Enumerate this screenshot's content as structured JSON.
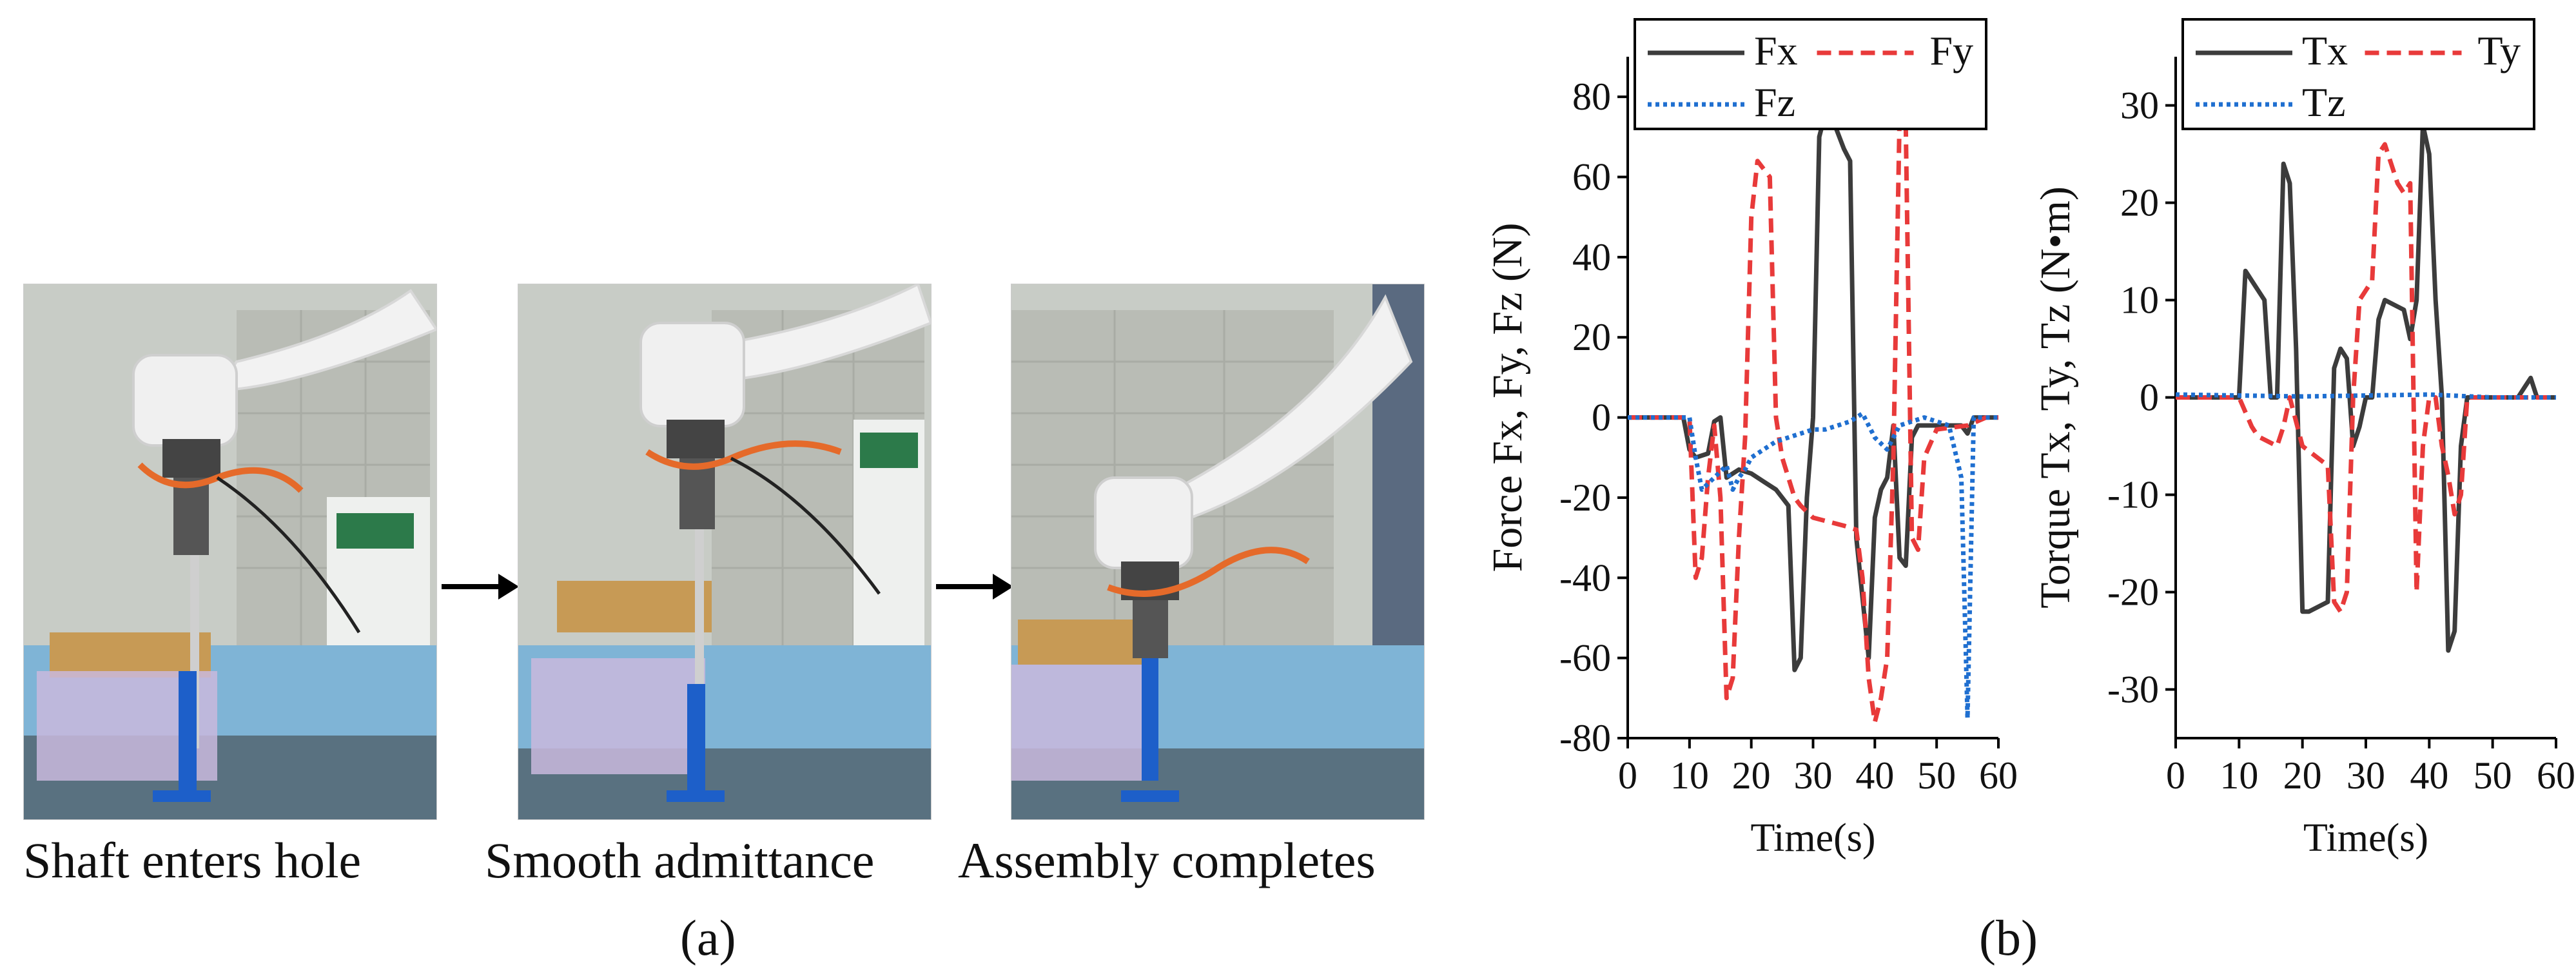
{
  "panel_a": {
    "label": "(a)",
    "captions": [
      "Shaft enters hole",
      "Smooth admittance",
      "Assembly completes"
    ]
  },
  "panel_b": {
    "label": "(b)"
  },
  "chart_data": [
    {
      "type": "line",
      "title": "",
      "xlabel": "Time(s)",
      "ylabel": "Force Fx, Fy, Fz (N)",
      "xlim": [
        0,
        60
      ],
      "ylim": [
        -80,
        90
      ],
      "xticks": [
        0,
        10,
        20,
        30,
        40,
        50,
        60
      ],
      "yticks": [
        -80,
        -60,
        -40,
        -20,
        0,
        20,
        40,
        60,
        80
      ],
      "legend": "top",
      "series": [
        {
          "name": "Fx",
          "color": "#3c3c3c",
          "dash": "solid",
          "x": [
            0,
            9,
            10,
            11,
            13,
            14,
            15,
            16,
            17,
            18,
            20,
            22,
            24,
            25,
            26,
            27,
            28,
            29,
            30,
            31,
            32,
            33,
            35,
            36,
            37,
            38,
            39,
            40,
            41,
            42,
            43,
            44,
            45,
            46,
            47,
            50,
            54,
            55,
            56,
            57,
            60
          ],
          "y": [
            0,
            0,
            -8,
            -10,
            -9,
            -1,
            0,
            -15,
            -14,
            -13,
            -14,
            -16,
            -18,
            -20,
            -22,
            -63,
            -60,
            -20,
            0,
            70,
            76,
            75,
            67,
            64,
            -30,
            -45,
            -60,
            -25,
            -18,
            -15,
            -2,
            -35,
            -37,
            -5,
            -2,
            -2,
            -2,
            -4,
            0,
            0,
            0
          ]
        },
        {
          "name": "Fy",
          "color": "#e83a3a",
          "dash": "long",
          "x": [
            0,
            10,
            11,
            12,
            13,
            14,
            15,
            16,
            17,
            18,
            19,
            20,
            21,
            22,
            23,
            24,
            25,
            26,
            27,
            28,
            30,
            35,
            37,
            38,
            39,
            40,
            41,
            42,
            43,
            44,
            45,
            46,
            47,
            48,
            50,
            55,
            58,
            60
          ],
          "y": [
            0,
            0,
            -40,
            -35,
            -15,
            -2,
            -20,
            -70,
            -65,
            -30,
            -5,
            50,
            64,
            62,
            60,
            0,
            -10,
            -15,
            -20,
            -22,
            -25,
            -27,
            -28,
            -40,
            -65,
            -76,
            -70,
            -60,
            -10,
            75,
            73,
            -30,
            -33,
            -10,
            -3,
            -2,
            0,
            0
          ]
        },
        {
          "name": "Fz",
          "color": "#1f6fd0",
          "dash": "dot",
          "x": [
            0,
            10,
            11,
            12,
            14,
            16,
            17,
            18,
            19,
            20,
            22,
            24,
            26,
            28,
            30,
            32,
            34,
            36,
            38,
            40,
            42,
            44,
            46,
            48,
            50,
            52,
            54,
            55,
            56,
            57,
            60
          ],
          "y": [
            0,
            0,
            -10,
            -18,
            -15,
            -12,
            -18,
            -15,
            -13,
            -10,
            -8,
            -6,
            -5,
            -4,
            -3,
            -3,
            -2,
            -1,
            1,
            -5,
            -8,
            -2,
            -1,
            0,
            -1,
            -2,
            -15,
            -75,
            0,
            0,
            0
          ]
        }
      ]
    },
    {
      "type": "line",
      "title": "",
      "xlabel": "Time(s)",
      "ylabel": "Torque Tx, Ty, Tz (N•m)",
      "xlim": [
        0,
        60
      ],
      "ylim": [
        -35,
        35
      ],
      "xticks": [
        0,
        10,
        20,
        30,
        40,
        50,
        60
      ],
      "yticks": [
        -30,
        -20,
        -10,
        0,
        10,
        20,
        30
      ],
      "legend": "top",
      "series": [
        {
          "name": "Tx",
          "color": "#3c3c3c",
          "dash": "solid",
          "x": [
            0,
            10,
            11,
            12,
            14,
            15,
            16,
            17,
            18,
            19,
            20,
            21,
            24,
            25,
            26,
            27,
            28,
            29,
            30,
            31,
            32,
            33,
            36,
            37,
            38,
            39,
            40,
            41,
            42,
            43,
            44,
            45,
            46,
            47,
            54,
            55,
            56,
            57,
            60
          ],
          "y": [
            0,
            0,
            13,
            12,
            10,
            0,
            0,
            24,
            22,
            5,
            -22,
            -22,
            -21,
            3,
            5,
            4,
            -5,
            -3,
            0,
            0,
            8,
            10,
            9,
            6,
            10,
            28,
            25,
            10,
            0,
            -26,
            -24,
            -5,
            0,
            0,
            0,
            1,
            2,
            0,
            0
          ]
        },
        {
          "name": "Ty",
          "color": "#e83a3a",
          "dash": "long",
          "x": [
            0,
            10,
            12,
            13,
            16,
            17,
            18,
            20,
            22,
            24,
            25,
            26,
            27,
            28,
            29,
            31,
            32,
            33,
            34,
            35,
            36,
            37,
            38,
            39,
            40,
            41,
            42,
            43,
            44,
            45,
            46,
            48,
            55,
            60
          ],
          "y": [
            0,
            0,
            -3,
            -4,
            -5,
            -3,
            0,
            -5,
            -6,
            -7,
            -21,
            -22,
            -20,
            0,
            10,
            12,
            25,
            26,
            24,
            22,
            21,
            22,
            -20,
            -5,
            0,
            0,
            -5,
            -8,
            -12,
            -10,
            0,
            0,
            0,
            0
          ]
        },
        {
          "name": "Tz",
          "color": "#1f6fd0",
          "dash": "dot",
          "x": [
            0,
            10,
            20,
            30,
            40,
            50,
            60
          ],
          "y": [
            0.3,
            0.2,
            0.1,
            0.2,
            0.3,
            0,
            0
          ]
        }
      ]
    }
  ]
}
